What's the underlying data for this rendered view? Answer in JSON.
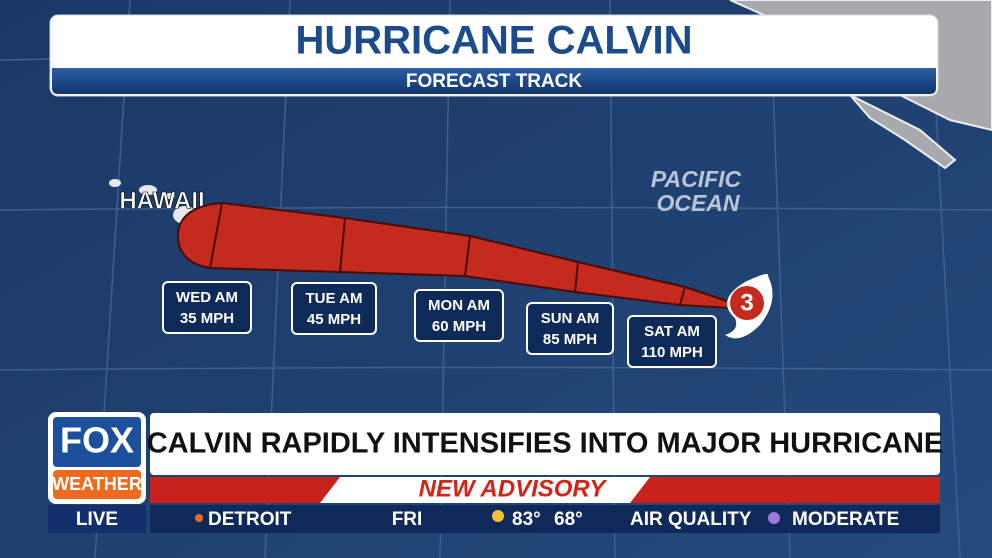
{
  "header": {
    "title": "HURRICANE CALVIN",
    "subtitle": "FORECAST TRACK"
  },
  "map": {
    "island_label": "HAWAII",
    "ocean_label": [
      "PACIFIC",
      "OCEAN"
    ],
    "storm_category": "3"
  },
  "forecast": [
    {
      "day": "WED AM",
      "wind": "35 MPH"
    },
    {
      "day": "TUE AM",
      "wind": "45 MPH"
    },
    {
      "day": "MON AM",
      "wind": "60 MPH"
    },
    {
      "day": "SUN AM",
      "wind": "85 MPH"
    },
    {
      "day": "SAT AM",
      "wind": "110 MPH"
    }
  ],
  "lower_third": {
    "logo_top": "FOX",
    "logo_bottom": "WEATHER",
    "live": "LIVE",
    "headline": "CALVIN RAPIDLY INTENSIFIES INTO MAJOR HURRICANE",
    "banner": "NEW ADVISORY",
    "ticker": {
      "city": "DETROIT",
      "day": "FRI",
      "high": "83°",
      "low": "68°",
      "aq_label": "AIR QUALITY",
      "aq_value": "MODERATE"
    }
  }
}
